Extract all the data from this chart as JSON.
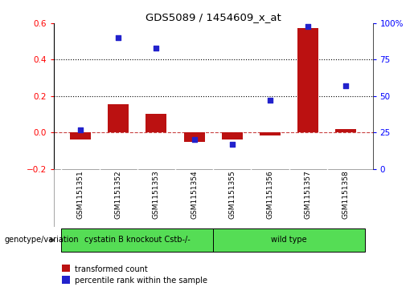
{
  "title": "GDS5089 / 1454609_x_at",
  "samples": [
    "GSM1151351",
    "GSM1151352",
    "GSM1151353",
    "GSM1151354",
    "GSM1151355",
    "GSM1151356",
    "GSM1151357",
    "GSM1151358"
  ],
  "transformed_count": [
    -0.04,
    0.155,
    0.1,
    -0.052,
    -0.038,
    -0.018,
    0.575,
    0.018
  ],
  "percentile": [
    27,
    90,
    83,
    20,
    17,
    47,
    98,
    57
  ],
  "ylim_left": [
    -0.2,
    0.6
  ],
  "ylim_right": [
    0,
    100
  ],
  "yticks_left": [
    -0.2,
    0.0,
    0.2,
    0.4,
    0.6
  ],
  "yticks_right": [
    0,
    25,
    50,
    75,
    100
  ],
  "ytick_labels_right": [
    "0",
    "25",
    "50",
    "75",
    "100%"
  ],
  "hlines_dotted": [
    0.2,
    0.4
  ],
  "bar_color": "#bb1111",
  "scatter_color": "#2222cc",
  "group1_count": 4,
  "group1_label": "cystatin B knockout Cstb-/-",
  "group2_count": 4,
  "group2_label": "wild type",
  "group_color": "#55dd55",
  "group_label_left": "genotype/variation",
  "legend_bar_label": "transformed count",
  "legend_scatter_label": "percentile rank within the sample",
  "sample_bg_color": "#cccccc",
  "plot_bg": "#ffffff",
  "bar_width": 0.55,
  "scatter_size": 22
}
